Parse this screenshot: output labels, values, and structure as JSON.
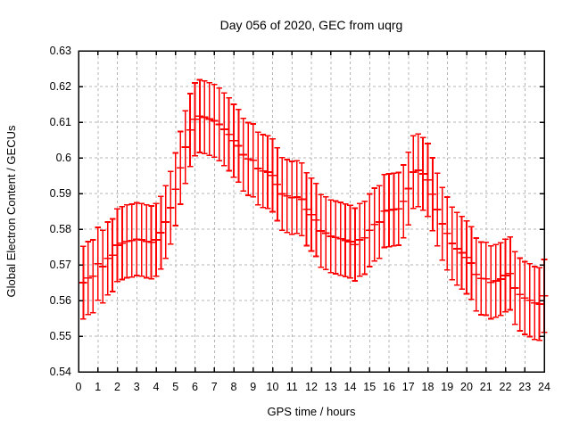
{
  "chart_data": {
    "type": "scatter",
    "style": "yerrorbars",
    "title": "Day 056 of 2020, GEC from uqrg",
    "xlabel": "GPS time / hours",
    "ylabel": "Global Electron Content / GECUs",
    "xlim": [
      0,
      24
    ],
    "ylim": [
      0.54,
      0.63
    ],
    "grid": true,
    "legend": "none",
    "x_ticks": [
      "0",
      "1",
      "2",
      "3",
      "4",
      "5",
      "6",
      "7",
      "8",
      "9",
      "10",
      "11",
      "12",
      "13",
      "14",
      "15",
      "16",
      "17",
      "18",
      "19",
      "20",
      "21",
      "22",
      "23",
      "24"
    ],
    "y_ticks": [
      "0.54",
      "0.55",
      "0.56",
      "0.57",
      "0.58",
      "0.59",
      "0.6",
      "0.61",
      "0.62",
      "0.63"
    ],
    "colors": {
      "series": "#ff0000",
      "grid": "#b4b4b4",
      "axis": "#000000",
      "background": "#ffffff"
    },
    "series": [
      {
        "name": "GEC",
        "color": "#ff0000",
        "y_err_half": 0.0102,
        "x": [
          0.25,
          0.5,
          0.75,
          1,
          1.25,
          1.5,
          1.75,
          2,
          2.25,
          2.5,
          2.75,
          3,
          3.25,
          3.5,
          3.75,
          4,
          4.25,
          4.5,
          4.75,
          5,
          5.25,
          5.5,
          5.75,
          6,
          6.25,
          6.5,
          6.75,
          7,
          7.25,
          7.5,
          7.75,
          8,
          8.25,
          8.5,
          8.75,
          9,
          9.25,
          9.5,
          9.75,
          10,
          10.25,
          10.5,
          10.75,
          11,
          11.25,
          11.5,
          11.75,
          12,
          12.25,
          12.5,
          12.75,
          13,
          13.25,
          13.5,
          13.75,
          14,
          14.25,
          14.5,
          14.75,
          15,
          15.25,
          15.5,
          15.75,
          16,
          16.25,
          16.5,
          16.75,
          17,
          17.25,
          17.5,
          17.75,
          18,
          18.25,
          18.5,
          18.75,
          19,
          19.25,
          19.5,
          19.75,
          20,
          20.25,
          20.5,
          20.75,
          21,
          21.25,
          21.5,
          21.75,
          22,
          22.25,
          22.5,
          22.75,
          23,
          23.25,
          23.5,
          23.75,
          24
        ],
        "y": [
          0.565,
          0.5663,
          0.5668,
          0.5703,
          0.5695,
          0.5718,
          0.5727,
          0.5755,
          0.5761,
          0.5766,
          0.5768,
          0.5772,
          0.577,
          0.5766,
          0.5763,
          0.577,
          0.579,
          0.582,
          0.586,
          0.5912,
          0.5972,
          0.603,
          0.6078,
          0.6108,
          0.6117,
          0.6114,
          0.6109,
          0.6104,
          0.6094,
          0.608,
          0.6066,
          0.6048,
          0.6034,
          0.6009,
          0.5997,
          0.5993,
          0.597,
          0.5963,
          0.596,
          0.5951,
          0.5926,
          0.5899,
          0.5893,
          0.5888,
          0.589,
          0.5884,
          0.5856,
          0.5841,
          0.5826,
          0.5795,
          0.5789,
          0.578,
          0.5777,
          0.5773,
          0.5769,
          0.5765,
          0.5757,
          0.577,
          0.5776,
          0.5797,
          0.5813,
          0.582,
          0.5851,
          0.5853,
          0.5855,
          0.5857,
          0.5878,
          0.5914,
          0.596,
          0.5965,
          0.5955,
          0.5938,
          0.5898,
          0.5855,
          0.5815,
          0.5788,
          0.576,
          0.5745,
          0.5734,
          0.5721,
          0.5705,
          0.5673,
          0.5662,
          0.5661,
          0.5651,
          0.5655,
          0.566,
          0.567,
          0.5676,
          0.5635,
          0.5617,
          0.5607,
          0.5601,
          0.5593,
          0.559,
          0.5613
        ]
      }
    ]
  }
}
